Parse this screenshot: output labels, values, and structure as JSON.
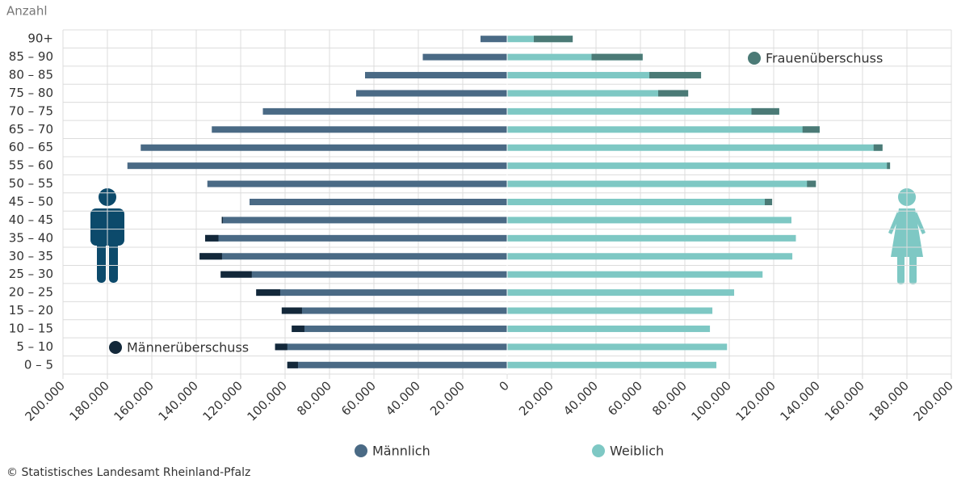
{
  "chart_data": {
    "type": "pyramid",
    "y_axis_label": "Anzahl",
    "source": "© Statistisches Landesamt Rheinland-Pfalz",
    "categories": [
      "90+",
      "85 – 90",
      "80 – 85",
      "75 – 80",
      "70 – 75",
      "65 – 70",
      "60 – 65",
      "55 – 60",
      "50 – 55",
      "45 – 50",
      "40 – 45",
      "35 – 40",
      "30 – 35",
      "25 – 30",
      "20 – 25",
      "15 – 20",
      "10 – 15",
      "5 – 10",
      "0 – 5"
    ],
    "series": [
      {
        "name": "Männlich",
        "color": "#4a6a85",
        "surplus_name": "Männerüberschuss",
        "surplus_color": "#13283a",
        "values": [
          12000,
          38000,
          64000,
          68000,
          110000,
          133000,
          165000,
          171000,
          135000,
          116000,
          128500,
          136000,
          138500,
          129000,
          113000,
          101500,
          97000,
          104500,
          99000
        ]
      },
      {
        "name": "Weiblich",
        "color": "#7ec8c4",
        "surplus_name": "Frauenüberschuss",
        "surplus_color": "#4b7a76",
        "values": [
          29500,
          61000,
          87300,
          81500,
          122500,
          140700,
          169000,
          172400,
          139000,
          119300,
          128000,
          130000,
          128400,
          115000,
          102200,
          92400,
          91300,
          99000,
          94200
        ]
      }
    ],
    "xlim": [
      0,
      200000
    ],
    "xticks": [
      0,
      {
        "value": 20000,
        "label": "20.000"
      },
      {
        "value": 40000,
        "label": "40.000"
      },
      {
        "value": 60000,
        "label": "60.000"
      },
      {
        "value": 80000,
        "label": "80.000"
      },
      {
        "value": 100000,
        "label": "100.000"
      },
      {
        "value": 120000,
        "label": "120.000"
      },
      {
        "value": 140000,
        "label": "140.000"
      },
      {
        "value": 160000,
        "label": "160.000"
      },
      {
        "value": 180000,
        "label": "180.000"
      },
      {
        "value": 200000,
        "label": "200.000"
      }
    ],
    "grid": true
  }
}
